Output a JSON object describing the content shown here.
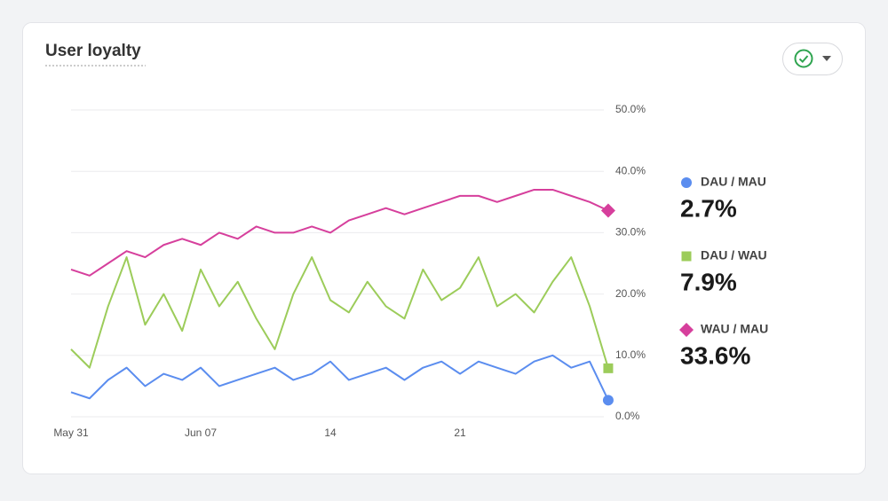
{
  "chart_data": {
    "type": "line",
    "title": "User loyalty",
    "categories": [
      "May 31",
      null,
      null,
      null,
      null,
      null,
      null,
      "Jun 07",
      null,
      null,
      null,
      null,
      null,
      null,
      "14",
      null,
      null,
      null,
      null,
      null,
      null,
      "21",
      null,
      null,
      null,
      null,
      null,
      null,
      null,
      null
    ],
    "ylim": [
      0,
      50
    ],
    "yticks": [
      {
        "value": 0,
        "label": "0.0%"
      },
      {
        "value": 10,
        "label": "10.0%"
      },
      {
        "value": 20,
        "label": "20.0%"
      },
      {
        "value": 30,
        "label": "30.0%"
      },
      {
        "value": 40,
        "label": "40.0%"
      },
      {
        "value": 50,
        "label": "50.0%"
      }
    ],
    "grid": true,
    "legend": "right",
    "series": [
      {
        "name": "DAU / MAU",
        "color": "#5b8def",
        "marker": "circle",
        "values": [
          4,
          3,
          6,
          8,
          5,
          7,
          6,
          8,
          5,
          6,
          7,
          8,
          6,
          7,
          9,
          6,
          7,
          8,
          6,
          8,
          9,
          7,
          9,
          8,
          7,
          9,
          10,
          8,
          9,
          2.7
        ],
        "value_labels": [
          null,
          null,
          null,
          null,
          null,
          null,
          null,
          null,
          null,
          null,
          null,
          null,
          null,
          null,
          null,
          null,
          null,
          null,
          null,
          null,
          null,
          null,
          null,
          null,
          null,
          null,
          null,
          null,
          null,
          "2.7%"
        ]
      },
      {
        "name": "DAU / WAU",
        "color": "#9ccc5a",
        "marker": "square",
        "values": [
          11,
          8,
          18,
          26,
          15,
          20,
          14,
          24,
          18,
          22,
          16,
          11,
          20,
          26,
          19,
          17,
          22,
          18,
          16,
          24,
          19,
          21,
          26,
          18,
          20,
          17,
          22,
          26,
          18,
          7.9
        ],
        "value_labels": [
          null,
          null,
          null,
          null,
          null,
          null,
          null,
          null,
          null,
          null,
          null,
          null,
          null,
          null,
          null,
          null,
          null,
          null,
          null,
          null,
          null,
          null,
          null,
          null,
          null,
          null,
          null,
          null,
          null,
          "7.9%"
        ]
      },
      {
        "name": "WAU / MAU",
        "color": "#d63f9c",
        "marker": "diamond",
        "values": [
          24,
          23,
          25,
          27,
          26,
          28,
          29,
          28,
          30,
          29,
          31,
          30,
          30,
          31,
          30,
          32,
          33,
          34,
          33,
          34,
          35,
          36,
          36,
          35,
          36,
          37,
          37,
          36,
          35,
          33.6
        ],
        "value_labels": [
          null,
          null,
          null,
          null,
          null,
          null,
          null,
          null,
          null,
          null,
          null,
          null,
          null,
          null,
          null,
          null,
          null,
          null,
          null,
          null,
          null,
          null,
          null,
          null,
          null,
          null,
          null,
          null,
          null,
          "33.6%"
        ]
      }
    ]
  }
}
